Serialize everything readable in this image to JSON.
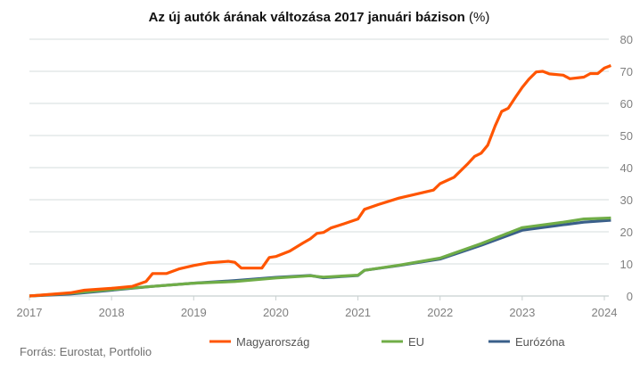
{
  "chart_data": {
    "type": "line",
    "title": "Az új autók árának változása 2017 januári bázison",
    "title_suffix": "(%)",
    "source": "Forrás: Eurostat, Portfolio",
    "xlim": [
      2017,
      2024.08
    ],
    "ylim": [
      0,
      80
    ],
    "x_ticks": [
      "2017",
      "2018",
      "2019",
      "2020",
      "2021",
      "2022",
      "2023",
      "2024"
    ],
    "y_ticks": [
      "0",
      "10",
      "20",
      "30",
      "40",
      "50",
      "60",
      "70",
      "80"
    ],
    "grid": true,
    "legend_position": "bottom",
    "series": [
      {
        "name": "Magyarország",
        "color": "#ff5500",
        "x": [
          2017,
          2017.5,
          2017.67,
          2018,
          2018.25,
          2018.42,
          2018.5,
          2018.67,
          2018.83,
          2019,
          2019.17,
          2019.42,
          2019.5,
          2019.58,
          2019.83,
          2019.92,
          2020,
          2020.17,
          2020.33,
          2020.42,
          2020.5,
          2020.58,
          2020.67,
          2020.83,
          2021,
          2021.08,
          2021.25,
          2021.5,
          2021.67,
          2021.92,
          2022,
          2022.17,
          2022.33,
          2022.42,
          2022.5,
          2022.58,
          2022.67,
          2022.75,
          2022.83,
          2022.92,
          2023,
          2023.08,
          2023.17,
          2023.25,
          2023.33,
          2023.5,
          2023.58,
          2023.75,
          2023.83,
          2023.92,
          2024,
          2024.08
        ],
        "values": [
          0,
          1,
          1.8,
          2.4,
          3,
          4.5,
          7,
          7,
          8.5,
          9.5,
          10.3,
          10.8,
          10.5,
          8.7,
          8.7,
          12,
          12.3,
          14,
          16.5,
          17.8,
          19.5,
          19.8,
          21.2,
          22.5,
          24,
          27,
          28.5,
          30.5,
          31.5,
          33,
          35,
          37,
          41,
          43.5,
          44.5,
          47,
          53,
          57.5,
          58.5,
          62,
          65,
          67.5,
          69.8,
          70,
          69.2,
          68.8,
          67.7,
          68.2,
          69.3,
          69.3,
          71,
          71.8
        ]
      },
      {
        "name": "EU",
        "color": "#70ad47",
        "x": [
          2017,
          2017.5,
          2018,
          2018.5,
          2019,
          2019.5,
          2020,
          2020.42,
          2020.58,
          2021,
          2021.08,
          2021.5,
          2022,
          2022.5,
          2023,
          2023.5,
          2023.75,
          2024.08
        ],
        "values": [
          0,
          0.9,
          2,
          3,
          4,
          4.5,
          5.6,
          6.3,
          5.9,
          6.5,
          8,
          9.6,
          11.8,
          16.3,
          21.3,
          23,
          24,
          24.3
        ]
      },
      {
        "name": "Eurózóna",
        "color": "#3a5f8a",
        "x": [
          2017,
          2017.5,
          2018,
          2018.5,
          2019,
          2019.5,
          2020,
          2020.42,
          2020.58,
          2021,
          2021.08,
          2021.5,
          2022,
          2022.5,
          2023,
          2023.5,
          2023.75,
          2024.08
        ],
        "values": [
          0,
          0.6,
          1.8,
          3,
          4,
          4.8,
          5.8,
          6.4,
          5.7,
          6.4,
          8,
          9.5,
          11.5,
          15.8,
          20.5,
          22.2,
          23,
          23.6
        ]
      }
    ]
  }
}
